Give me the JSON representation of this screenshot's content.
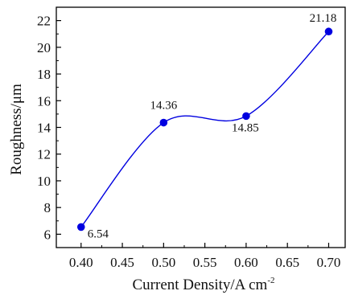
{
  "chart_data": {
    "type": "line",
    "title": "",
    "xlabel": "Current Density/A cm",
    "xlabel_superscript": "-2",
    "ylabel": "Roughness/μm",
    "xlim": [
      0.37,
      0.72
    ],
    "ylim": [
      5.0,
      23.0
    ],
    "x_ticks": [
      "0.40",
      "0.45",
      "0.50",
      "0.55",
      "0.60",
      "0.65",
      "0.70"
    ],
    "y_ticks": [
      "6",
      "8",
      "10",
      "12",
      "14",
      "16",
      "18",
      "20",
      "22"
    ],
    "series": [
      {
        "x": [
          0.4,
          0.5,
          0.6,
          0.7
        ],
        "y": [
          6.54,
          14.36,
          14.85,
          21.18
        ],
        "point_labels": [
          "6.54",
          "14.36",
          "14.85",
          "21.18"
        ],
        "color": "#0000e0",
        "marker": "circle",
        "smoothed": true
      }
    ],
    "grid": false,
    "legend": "none"
  }
}
